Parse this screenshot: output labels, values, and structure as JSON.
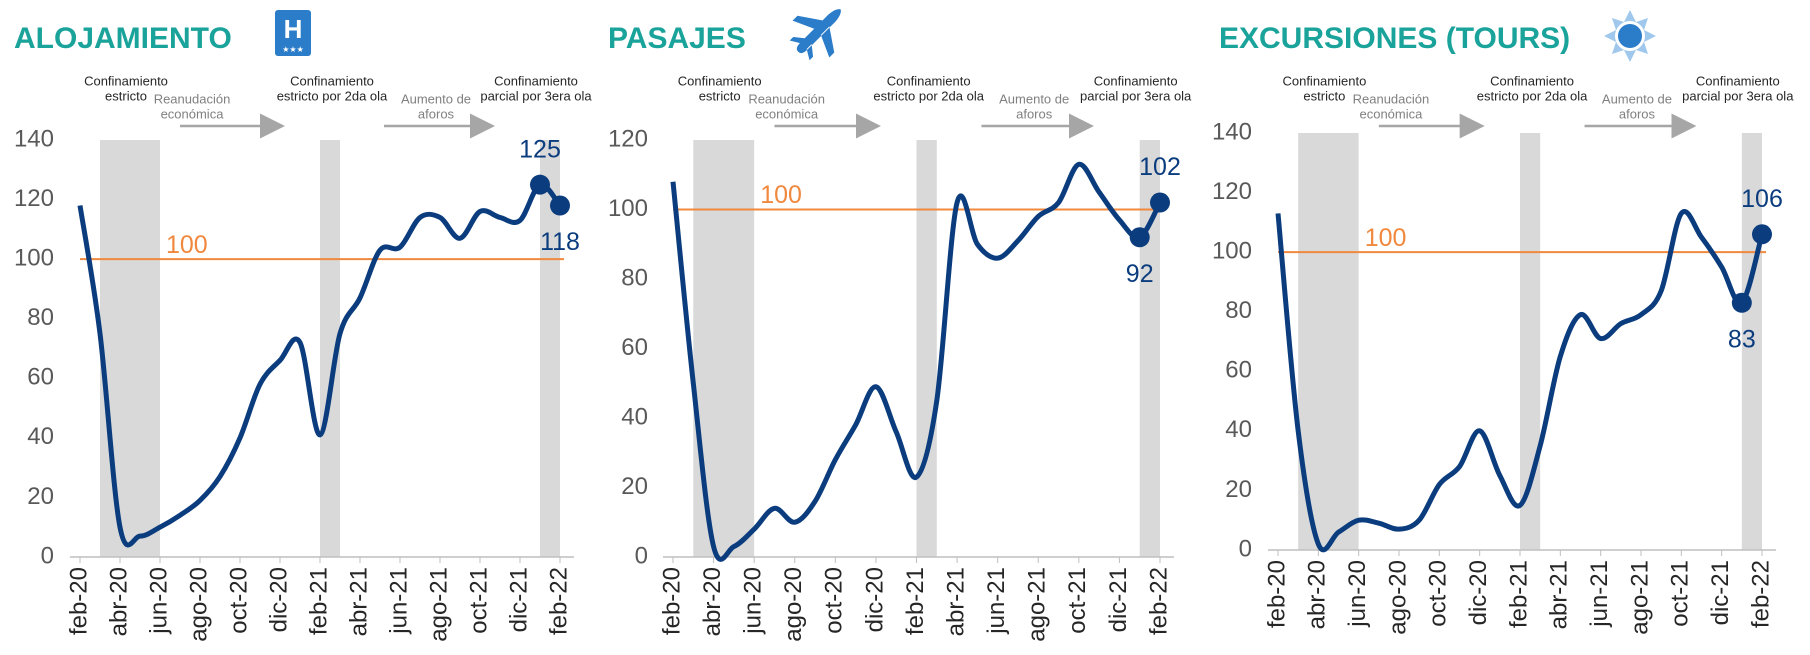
{
  "chart_data": [
    {
      "type": "line",
      "title": "ALOJAMIENTO",
      "categories": [
        "feb-20",
        null,
        "abr-20",
        null,
        "jun-20",
        null,
        "ago-20",
        null,
        "oct-20",
        null,
        "dic-20",
        null,
        "feb-21",
        null,
        "abr-21",
        null,
        "jun-21",
        null,
        "ago-21",
        null,
        "oct-21",
        null,
        "dic-21",
        null,
        "feb-22"
      ],
      "values": [
        118,
        75,
        10,
        7,
        10,
        14,
        19,
        27,
        40,
        58,
        66,
        72,
        41,
        75,
        87,
        103,
        104,
        114,
        114,
        107,
        116,
        114,
        113,
        125,
        118
      ],
      "color": "#0b3d7e",
      "ylim": [
        0,
        140
      ],
      "yticks": [
        0,
        20,
        40,
        60,
        80,
        100,
        120,
        140
      ],
      "reference": {
        "value": 100,
        "color": "#f0883e"
      },
      "shaded": [
        [
          1,
          4
        ],
        [
          12,
          13
        ],
        [
          23,
          24
        ]
      ],
      "labeled_points": [
        {
          "index": 23,
          "position": "above"
        },
        {
          "index": 24,
          "position": "below"
        }
      ],
      "events": [
        [
          "Confinamiento",
          "estricto"
        ],
        [
          "Reanudación",
          "económica"
        ],
        [
          "Confinamiento",
          "estricto por 2da ola"
        ],
        [
          "Aumento de",
          "aforos"
        ],
        [
          "Confinamiento",
          "parcial por 3era ola"
        ]
      ]
    },
    {
      "type": "line",
      "title": "PASAJES",
      "categories": [
        "feb-20",
        null,
        "abr-20",
        null,
        "jun-20",
        null,
        "ago-20",
        null,
        "oct-20",
        null,
        "dic-20",
        null,
        "feb-21",
        null,
        "abr-21",
        null,
        "jun-21",
        null,
        "ago-21",
        null,
        "oct-21",
        null,
        "dic-21",
        null,
        "feb-22"
      ],
      "values": [
        108,
        50,
        3,
        3,
        8,
        14,
        10,
        16,
        28,
        38,
        49,
        36,
        23,
        45,
        102,
        90,
        86,
        91,
        98,
        102,
        113,
        105,
        97,
        92,
        102
      ],
      "color": "#0b3d7e",
      "ylim": [
        0,
        120
      ],
      "yticks": [
        0,
        20,
        40,
        60,
        80,
        100,
        120
      ],
      "reference": {
        "value": 100,
        "color": "#f0883e"
      },
      "shaded": [
        [
          1,
          4
        ],
        [
          12,
          13
        ],
        [
          23,
          24
        ]
      ],
      "labeled_points": [
        {
          "index": 23,
          "position": "below"
        },
        {
          "index": 24,
          "position": "above"
        }
      ],
      "events": [
        [
          "Confinamiento",
          "estricto"
        ],
        [
          "Reanudación",
          "económica"
        ],
        [
          "Confinamiento",
          "estricto por 2da ola"
        ],
        [
          "Aumento de",
          "aforos"
        ],
        [
          "Confinamiento",
          "parcial por 3era ola"
        ]
      ]
    },
    {
      "type": "line",
      "title": "EXCURSIONES (TOURS)",
      "categories": [
        "feb-20",
        null,
        "abr-20",
        null,
        "jun-20",
        null,
        "ago-20",
        null,
        "oct-20",
        null,
        "dic-20",
        null,
        "feb-21",
        null,
        "abr-21",
        null,
        "jun-21",
        null,
        "ago-21",
        null,
        "oct-21",
        null,
        "dic-21",
        null,
        "feb-22"
      ],
      "values": [
        113,
        40,
        2,
        6,
        10,
        9,
        7,
        10,
        22,
        28,
        40,
        25,
        15,
        35,
        65,
        79,
        71,
        76,
        79,
        87,
        113,
        105,
        95,
        83,
        106
      ],
      "color": "#0b3d7e",
      "ylim": [
        0,
        140
      ],
      "yticks": [
        0,
        20,
        40,
        60,
        80,
        100,
        120,
        140
      ],
      "reference": {
        "value": 100,
        "color": "#f0883e"
      },
      "shaded": [
        [
          1,
          4
        ],
        [
          12,
          13
        ],
        [
          23,
          24
        ]
      ],
      "labeled_points": [
        {
          "index": 23,
          "position": "below"
        },
        {
          "index": 24,
          "position": "above"
        }
      ],
      "events": [
        [
          "Confinamiento",
          "estricto"
        ],
        [
          "Reanudación",
          "económica"
        ],
        [
          "Confinamiento",
          "estricto por 2da ola"
        ],
        [
          "Aumento de",
          "aforos"
        ],
        [
          "Confinamiento",
          "parcial por 3era ola"
        ]
      ]
    }
  ]
}
